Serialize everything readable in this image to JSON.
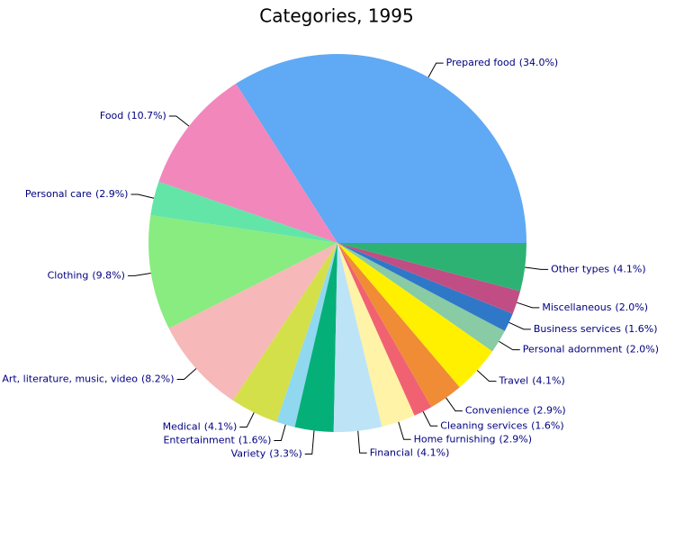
{
  "chart_data": {
    "type": "pie",
    "title": "Categories, 1995",
    "categories": [
      "Prepared food",
      "Food",
      "Personal care",
      "Clothing",
      "Art, literature, music, video",
      "Medical",
      "Entertainment",
      "Variety",
      "Financial",
      "Home furnishing",
      "Cleaning services",
      "Convenience",
      "Travel",
      "Personal adornment",
      "Business services",
      "Miscellaneous",
      "Other types"
    ],
    "values": [
      34.0,
      10.7,
      2.9,
      9.8,
      8.2,
      4.1,
      1.6,
      3.3,
      4.1,
      2.9,
      1.6,
      2.9,
      4.1,
      2.0,
      1.6,
      2.0,
      4.1
    ],
    "value_labels": [
      "(34.0%)",
      "(10.7%)",
      "(2.9%)",
      "(9.8%)",
      "(8.2%)",
      "(4.1%)",
      "(1.6%)",
      "(3.3%)",
      "(4.1%)",
      "(2.9%)",
      "(1.6%)",
      "(2.9%)",
      "(4.1%)",
      "(2.0%)",
      "(1.6%)",
      "(2.0%)",
      "(4.1%)"
    ],
    "colors": [
      "#60a9f4",
      "#f287bc",
      "#63e5a8",
      "#88ec80",
      "#f6b8b8",
      "#d4e04a",
      "#8fd8ef",
      "#05b078",
      "#bde3f7",
      "#fef3a6",
      "#f06272",
      "#f08c36",
      "#fff000",
      "#88cba5",
      "#2f78c8",
      "#c04e85",
      "#2eb273"
    ]
  }
}
